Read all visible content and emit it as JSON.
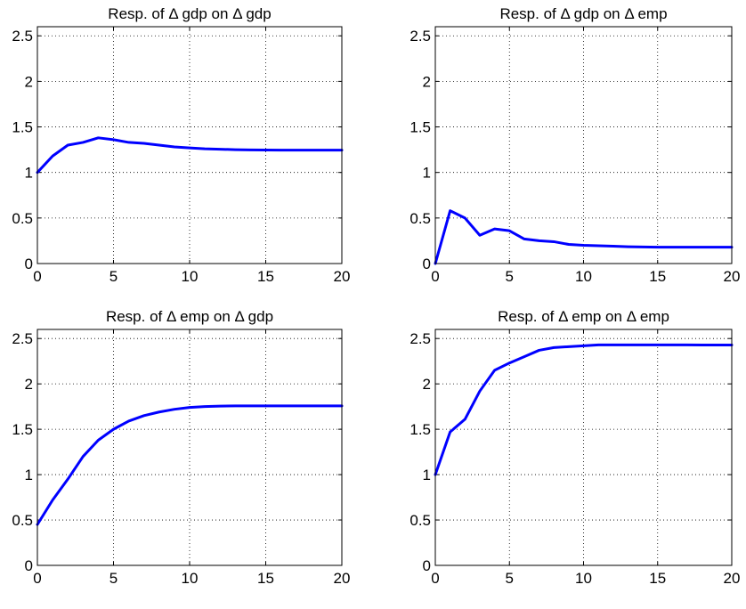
{
  "chart_data": [
    {
      "type": "line",
      "title": "Resp. of Δ gdp on Δ gdp",
      "xlim": [
        0,
        20
      ],
      "ylim": [
        0,
        2.6
      ],
      "xticks": [
        "0",
        "5",
        "10",
        "15",
        "20"
      ],
      "yticks": [
        "0",
        "0.5",
        "1",
        "1.5",
        "2",
        "2.5"
      ],
      "grid": true,
      "line_color": "#0000ff",
      "series": [
        {
          "x": [
            0,
            1,
            2,
            3,
            4,
            5,
            6,
            7,
            8,
            9,
            10,
            11,
            12,
            13,
            14,
            15,
            16,
            17,
            18,
            19,
            20
          ],
          "values": [
            1.0,
            1.18,
            1.3,
            1.33,
            1.38,
            1.36,
            1.33,
            1.32,
            1.3,
            1.28,
            1.27,
            1.26,
            1.255,
            1.25,
            1.248,
            1.246,
            1.245,
            1.245,
            1.245,
            1.245,
            1.245
          ]
        }
      ]
    },
    {
      "type": "line",
      "title": "Resp. of Δ gdp on Δ emp",
      "xlim": [
        0,
        20
      ],
      "ylim": [
        0,
        2.6
      ],
      "xticks": [
        "0",
        "5",
        "10",
        "15",
        "20"
      ],
      "yticks": [
        "0",
        "0.5",
        "1",
        "1.5",
        "2",
        "2.5"
      ],
      "grid": true,
      "line_color": "#0000ff",
      "series": [
        {
          "x": [
            0,
            1,
            2,
            3,
            4,
            5,
            6,
            7,
            8,
            9,
            10,
            11,
            12,
            13,
            14,
            15,
            16,
            17,
            18,
            19,
            20
          ],
          "values": [
            0.0,
            0.58,
            0.5,
            0.31,
            0.38,
            0.36,
            0.27,
            0.25,
            0.24,
            0.21,
            0.2,
            0.195,
            0.19,
            0.185,
            0.182,
            0.18,
            0.18,
            0.18,
            0.18,
            0.18,
            0.18
          ]
        }
      ]
    },
    {
      "type": "line",
      "title": "Resp. of Δ emp on Δ gdp",
      "xlim": [
        0,
        20
      ],
      "ylim": [
        0,
        2.6
      ],
      "xticks": [
        "0",
        "5",
        "10",
        "15",
        "20"
      ],
      "yticks": [
        "0",
        "0.5",
        "1",
        "1.5",
        "2",
        "2.5"
      ],
      "grid": true,
      "line_color": "#0000ff",
      "series": [
        {
          "x": [
            0,
            1,
            2,
            3,
            4,
            5,
            6,
            7,
            8,
            9,
            10,
            11,
            12,
            13,
            14,
            15,
            16,
            17,
            18,
            19,
            20
          ],
          "values": [
            0.45,
            0.72,
            0.95,
            1.2,
            1.38,
            1.5,
            1.59,
            1.65,
            1.69,
            1.72,
            1.74,
            1.75,
            1.755,
            1.757,
            1.758,
            1.758,
            1.758,
            1.758,
            1.757,
            1.757,
            1.757
          ]
        }
      ]
    },
    {
      "type": "line",
      "title": "Resp. of Δ emp on Δ emp",
      "xlim": [
        0,
        20
      ],
      "ylim": [
        0,
        2.6
      ],
      "xticks": [
        "0",
        "5",
        "10",
        "15",
        "20"
      ],
      "yticks": [
        "0",
        "0.5",
        "1",
        "1.5",
        "2",
        "2.5"
      ],
      "grid": true,
      "line_color": "#0000ff",
      "series": [
        {
          "x": [
            0,
            1,
            2,
            3,
            4,
            5,
            6,
            7,
            8,
            9,
            10,
            11,
            12,
            13,
            14,
            15,
            16,
            17,
            18,
            19,
            20
          ],
          "values": [
            1.0,
            1.47,
            1.61,
            1.92,
            2.15,
            2.23,
            2.3,
            2.37,
            2.4,
            2.41,
            2.42,
            2.43,
            2.43,
            2.43,
            2.43,
            2.43,
            2.43,
            2.43,
            2.428,
            2.428,
            2.428
          ]
        }
      ]
    }
  ]
}
